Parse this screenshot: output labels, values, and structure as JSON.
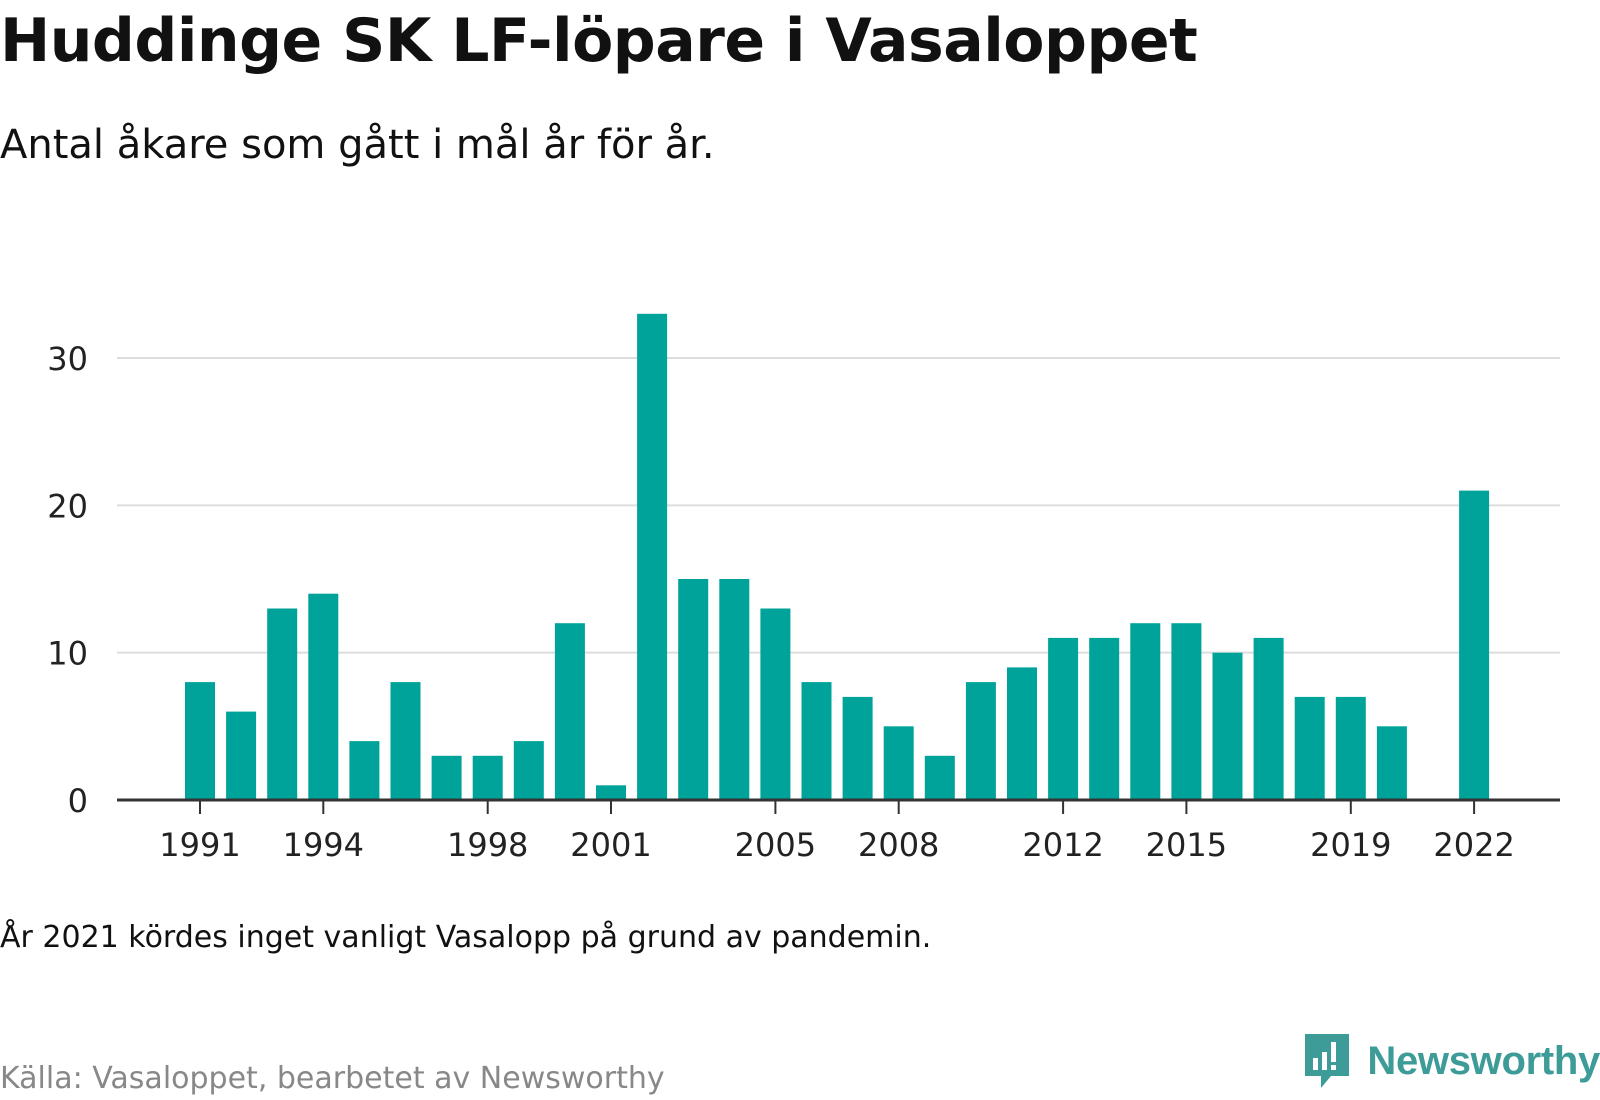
{
  "header": {
    "title": "Huddinge SK LF-löpare i Vasaloppet",
    "subtitle": "Antal åkare som gått i mål år för år."
  },
  "footer": {
    "note": "År 2021 kördes inget vanligt Vasalopp på grund av pandemin.",
    "source": "Källa: Vasaloppet, bearbetet av Newsworthy",
    "brand": "Newsworthy",
    "brand_icon": "newsworthy-logo-icon"
  },
  "colors": {
    "bar": "#00a39a",
    "gridline": "#dddddd",
    "axis": "#333333",
    "brand": "#3d9c98"
  },
  "chart_data": {
    "type": "bar",
    "title": "Huddinge SK LF-löpare i Vasaloppet",
    "subtitle": "Antal åkare som gått i mål år för år.",
    "xlabel": "",
    "ylabel": "",
    "ylim": [
      0,
      35
    ],
    "yticks": [
      0,
      10,
      20,
      30
    ],
    "xticks": [
      1991,
      1994,
      1998,
      2001,
      2005,
      2008,
      2012,
      2015,
      2019,
      2022
    ],
    "grid": true,
    "categories": [
      1991,
      1992,
      1993,
      1994,
      1995,
      1996,
      1997,
      1998,
      1999,
      2000,
      2001,
      2002,
      2003,
      2004,
      2005,
      2006,
      2007,
      2008,
      2009,
      2010,
      2011,
      2012,
      2013,
      2014,
      2015,
      2016,
      2017,
      2018,
      2019,
      2020,
      2021,
      2022
    ],
    "values": [
      8,
      6,
      13,
      14,
      4,
      8,
      3,
      3,
      4,
      12,
      1,
      33,
      15,
      15,
      13,
      8,
      7,
      5,
      3,
      8,
      9,
      11,
      11,
      12,
      12,
      10,
      11,
      7,
      7,
      5,
      null,
      21
    ]
  }
}
